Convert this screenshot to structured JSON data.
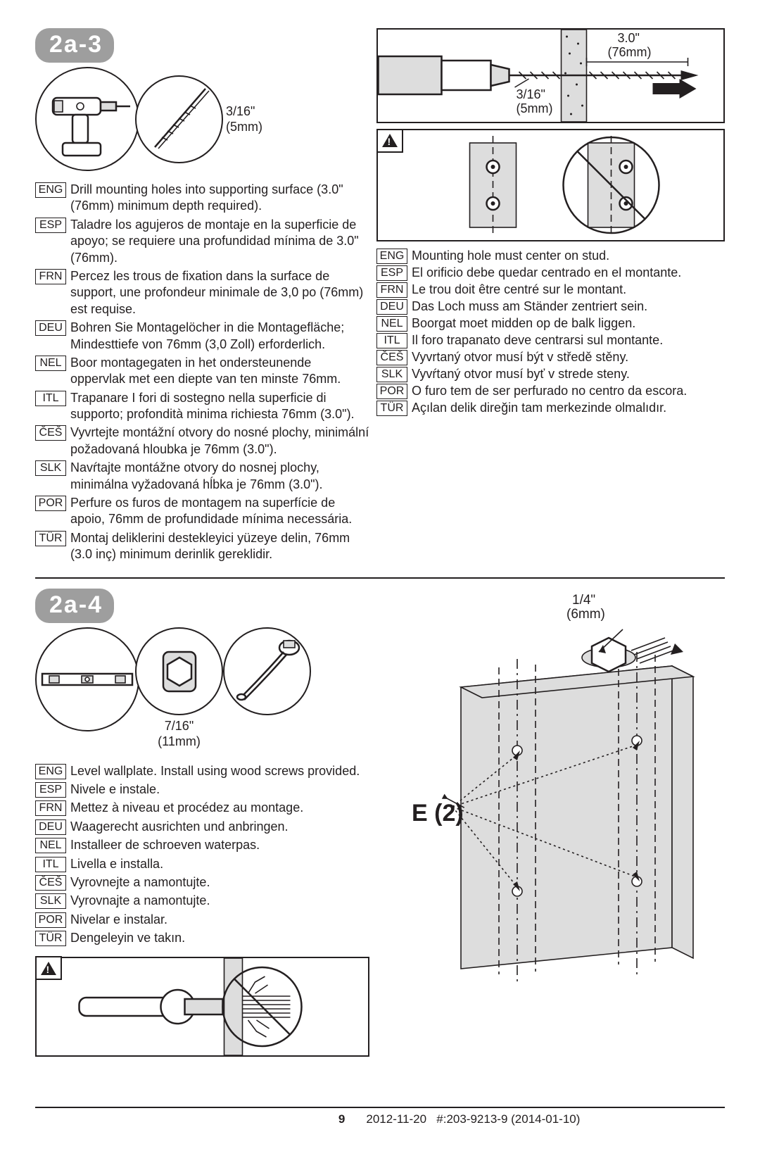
{
  "step1": {
    "badge": "2a-3",
    "bit_label_top": "3/16\"",
    "bit_label_bot": "(5mm)",
    "instructions": [
      {
        "code": "ENG",
        "text": "Drill mounting holes into supporting surface (3.0\" (76mm) minimum depth required)."
      },
      {
        "code": "ESP",
        "text": "Taladre los agujeros de montaje en la superficie de apoyo; se requiere una profundidad mínima de 3.0\" (76mm)."
      },
      {
        "code": "FRN",
        "text": "Percez les trous de fixation dans la surface de support, une profondeur minimale de 3,0 po (76mm) est requise."
      },
      {
        "code": "DEU",
        "text": "Bohren Sie Montagelöcher in die Montagefläche; Mindesttiefe von 76mm (3,0 Zoll) erforderlich."
      },
      {
        "code": "NEL",
        "text": "Boor montagegaten in het ondersteunende oppervlak met een diepte van ten minste 76mm."
      },
      {
        "code": "ITL",
        "text": "Trapanare I fori di sostegno nella superficie di supporto; profondità minima richiesta 76mm (3.0\")."
      },
      {
        "code": "ČEŠ",
        "text": "Vyvrtejte montážní otvory do nosné plochy, minimální požadovaná hloubka je 76mm (3.0\")."
      },
      {
        "code": "SLK",
        "text": "Navŕtajte montážne otvory do nosnej plochy, minimálna vyžadovaná hĺbka je 76mm (3.0\")."
      },
      {
        "code": "POR",
        "text": "Perfure os furos de montagem na superfície de apoio, 76mm de profundidade mínima necessária."
      },
      {
        "code": "TÜR",
        "text": "Montaj deliklerini destekleyici yüzeye delin, 76mm (3.0 inç) minimum derinlik gereklidir."
      }
    ]
  },
  "right1": {
    "depth_top": "3.0\"",
    "depth_bot": "(76mm)",
    "bit_top": "3/16\"",
    "bit_bot": "(5mm)",
    "instructions": [
      {
        "code": "ENG",
        "text": "Mounting hole must center on stud."
      },
      {
        "code": "ESP",
        "text": "El orificio debe quedar centrado en el montante."
      },
      {
        "code": "FRN",
        "text": "Le trou doit être centré sur le montant."
      },
      {
        "code": "DEU",
        "text": "Das Loch muss am Ständer zentriert sein."
      },
      {
        "code": "NEL",
        "text": "Boorgat moet midden op de balk liggen."
      },
      {
        "code": "ITL",
        "text": "Il foro trapanato deve centrarsi sul montante."
      },
      {
        "code": "ČEŠ",
        "text": "Vyvrtaný otvor musí být v středě stěny."
      },
      {
        "code": "SLK",
        "text": "Vyvŕtaný otvor musí byť v strede steny."
      },
      {
        "code": "POR",
        "text": "O furo tem de ser perfurado no centro da escora."
      },
      {
        "code": "TÜR",
        "text": "Açılan delik direğin tam merkezinde olmalıdır."
      }
    ]
  },
  "step2": {
    "badge": "2a-4",
    "socket_top": "7/16\"",
    "socket_bot": "(11mm)",
    "instructions": [
      {
        "code": "ENG",
        "text": "Level wallplate. Install using wood screws provided."
      },
      {
        "code": "ESP",
        "text": "Nivele e instale."
      },
      {
        "code": "FRN",
        "text": "Mettez à niveau et procédez au montage."
      },
      {
        "code": "DEU",
        "text": "Waagerecht ausrichten und anbringen."
      },
      {
        "code": "NEL",
        "text": "Installeer de schroeven waterpas."
      },
      {
        "code": "ITL",
        "text": "Livella e installa."
      },
      {
        "code": "ČEŠ",
        "text": "Vyrovnejte a namontujte."
      },
      {
        "code": "SLK",
        "text": "Vyrovnajte a namontujte."
      },
      {
        "code": "POR",
        "text": "Nivelar e instalar."
      },
      {
        "code": "TÜR",
        "text": "Dengeleyin ve takın."
      }
    ]
  },
  "right2": {
    "screw_top": "1/4\"",
    "screw_bot": "(6mm)",
    "part": "E (2)"
  },
  "footer": {
    "page": "9",
    "date": "2012-11-20",
    "doc": "#:203-9213-9  (2014-01-10)"
  }
}
